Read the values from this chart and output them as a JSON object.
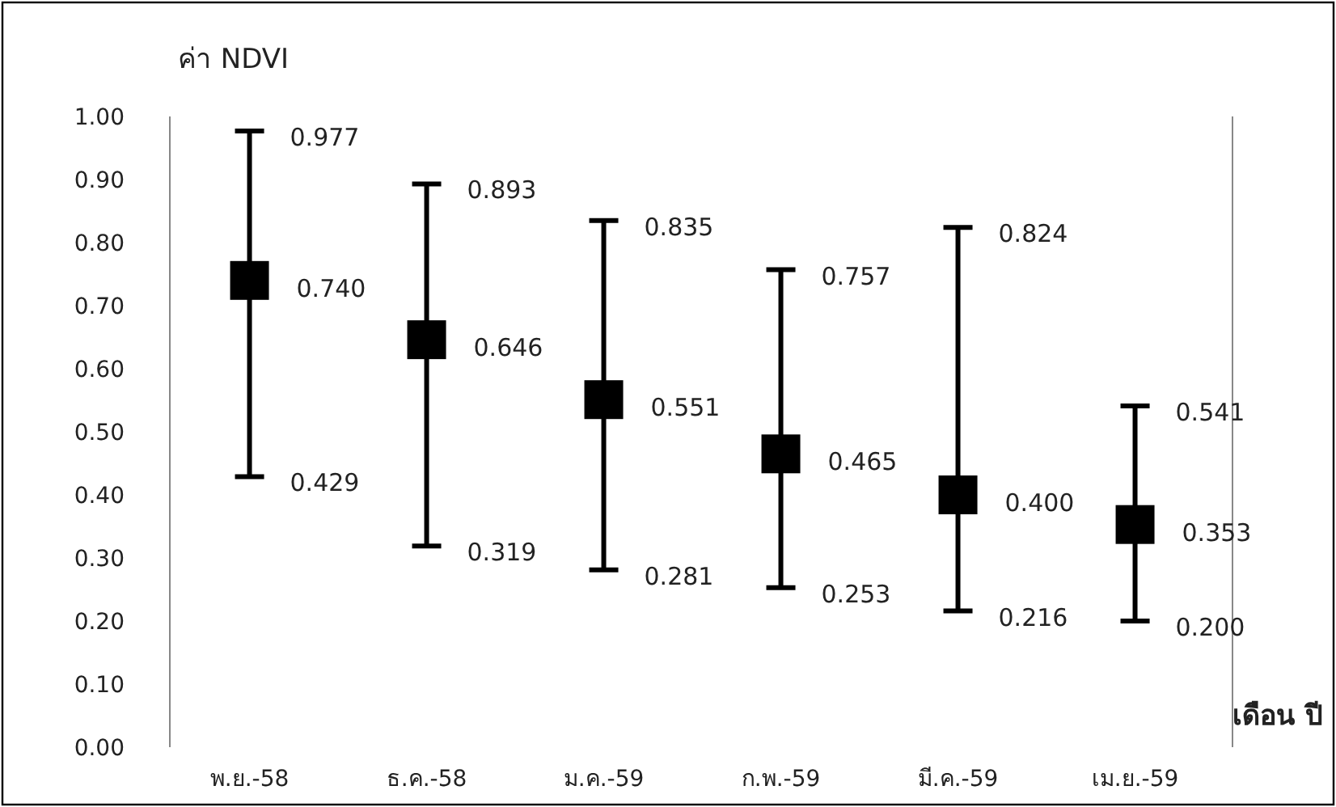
{
  "chart_data": {
    "type": "scatter",
    "ylabel": "ค่า NDVI",
    "xlabel": "เดือน ปี",
    "categories": [
      "พ.ย.-58",
      "ธ.ค.-58",
      "ม.ค.-59",
      "ก.พ.-59",
      "มี.ค.-59",
      "เม.ย.-59"
    ],
    "values": [
      0.74,
      0.646,
      0.551,
      0.465,
      0.4,
      0.353
    ],
    "value_labels": [
      "0.740",
      "0.646",
      "0.551",
      "0.465",
      "0.400",
      "0.353"
    ],
    "errors": [
      [
        0.429,
        0.977
      ],
      [
        0.319,
        0.893
      ],
      [
        0.281,
        0.835
      ],
      [
        0.253,
        0.757
      ],
      [
        0.216,
        0.824
      ],
      [
        0.2,
        0.541
      ]
    ],
    "annotations": [
      {
        "text": "0.977",
        "x": "พ.ย.-58",
        "y": 0.977
      },
      {
        "text": "0.429",
        "x": "พ.ย.-58",
        "y": 0.429
      },
      {
        "text": "0.893",
        "x": "ธ.ค.-58",
        "y": 0.893
      },
      {
        "text": "0.319",
        "x": "ธ.ค.-58",
        "y": 0.319
      },
      {
        "text": "0.835",
        "x": "ม.ค.-59",
        "y": 0.835
      },
      {
        "text": "0.281",
        "x": "ม.ค.-59",
        "y": 0.281
      },
      {
        "text": "0.757",
        "x": "ก.พ.-59",
        "y": 0.757
      },
      {
        "text": "0.253",
        "x": "ก.พ.-59",
        "y": 0.253
      },
      {
        "text": "0.824",
        "x": "มี.ค.-59",
        "y": 0.824
      },
      {
        "text": "0.216",
        "x": "มี.ค.-59",
        "y": 0.216
      },
      {
        "text": "0.541",
        "x": "เม.ย.-59",
        "y": 0.541
      },
      {
        "text": "0.200",
        "x": "เม.ย.-59",
        "y": 0.2
      }
    ],
    "ylim": [
      0,
      1
    ],
    "yticks": [
      {
        "value": 0,
        "label": "0.00"
      },
      {
        "value": 0.1,
        "label": "0.10"
      },
      {
        "value": 0.2,
        "label": "0.20"
      },
      {
        "value": 0.3,
        "label": "0.30"
      },
      {
        "value": 0.4,
        "label": "0.40"
      },
      {
        "value": 0.5,
        "label": "0.50"
      },
      {
        "value": 0.6,
        "label": "0.60"
      },
      {
        "value": 0.7,
        "label": "0.70"
      },
      {
        "value": 0.8,
        "label": "0.80"
      },
      {
        "value": 0.9,
        "label": "0.90"
      },
      {
        "value": 1,
        "label": "1.00"
      }
    ],
    "marker": "square",
    "color": "#000000",
    "grid": false
  }
}
